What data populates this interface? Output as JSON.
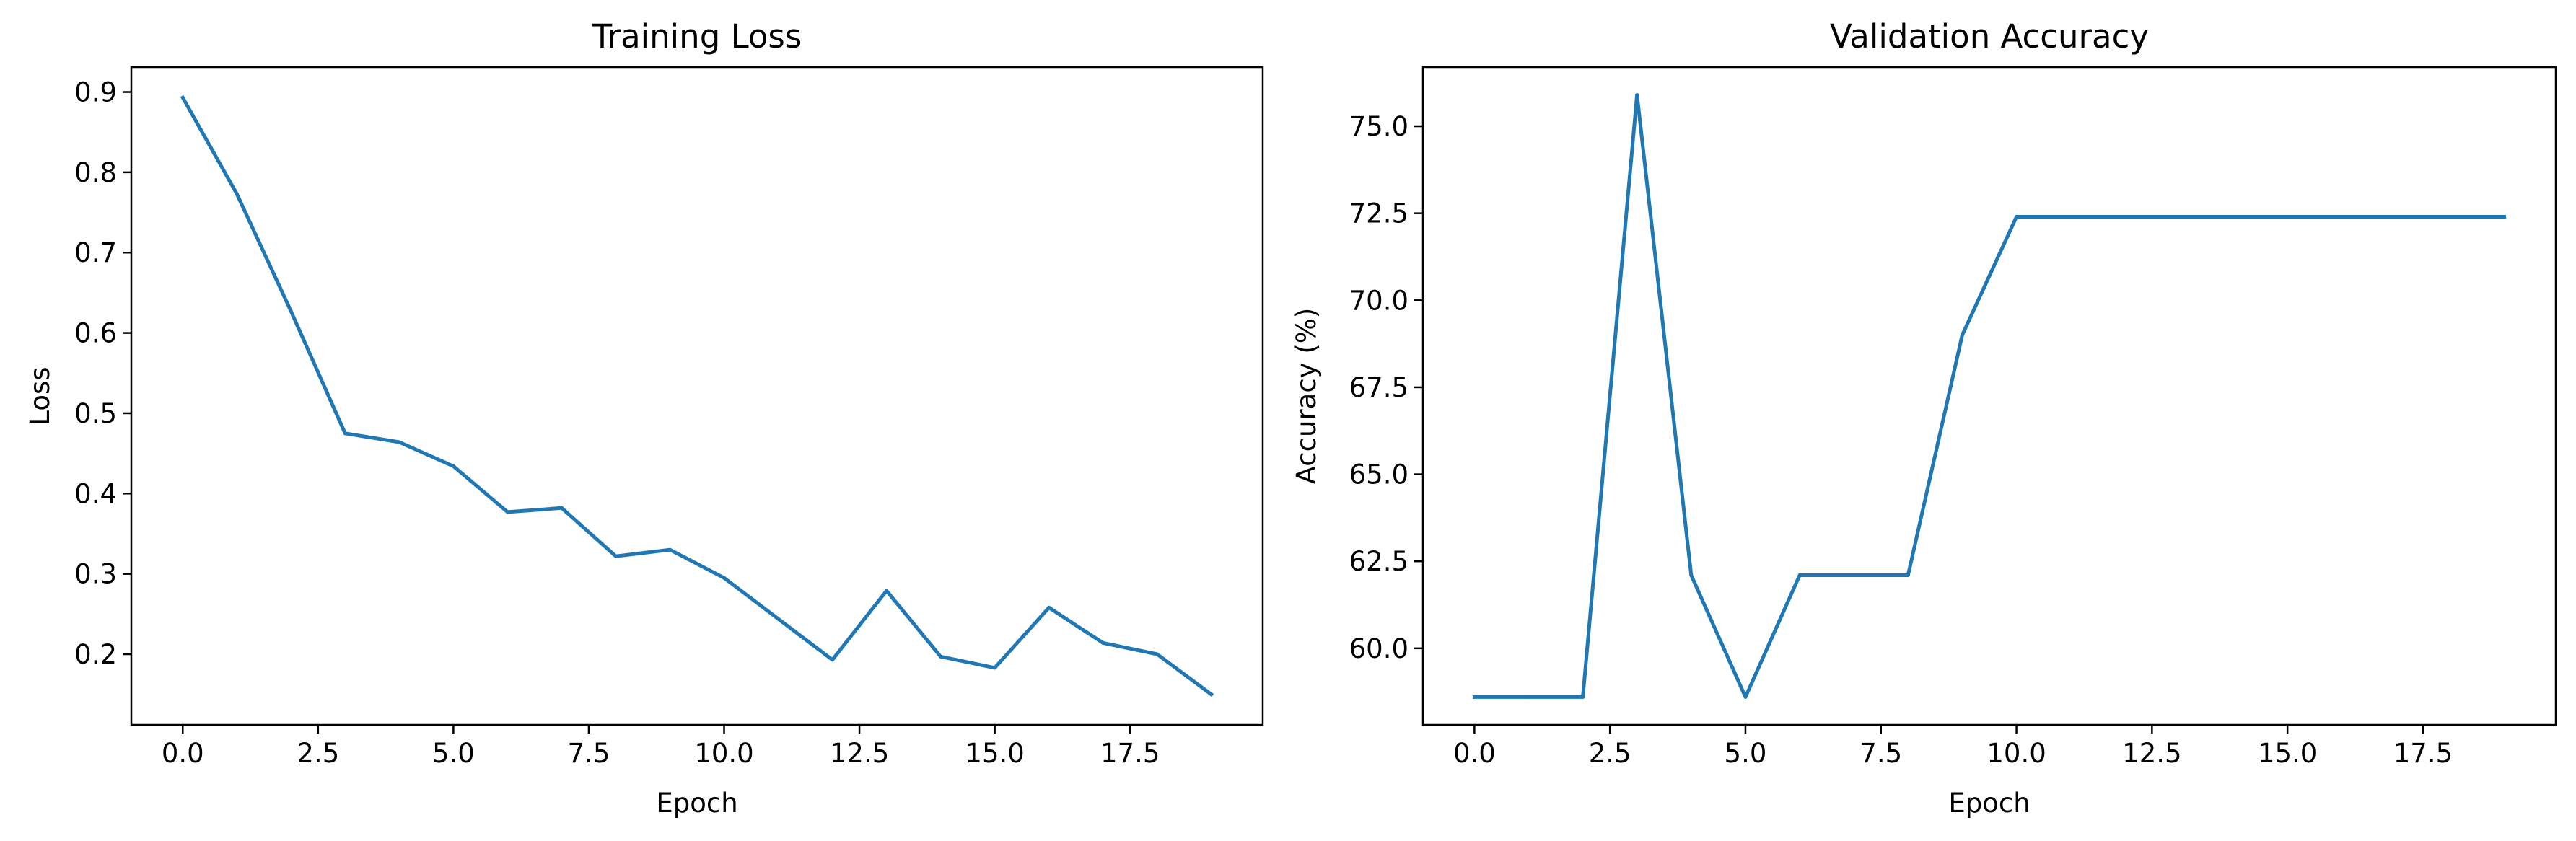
{
  "chart_data": [
    {
      "type": "line",
      "title": "Training Loss",
      "xlabel": "Epoch",
      "ylabel": "Loss",
      "xlim": [
        -0.95,
        19.95
      ],
      "ylim": [
        0.112,
        0.931
      ],
      "xticks": [
        0.0,
        2.5,
        5.0,
        7.5,
        10.0,
        12.5,
        15.0,
        17.5
      ],
      "xtick_labels": [
        "0.0",
        "2.5",
        "5.0",
        "7.5",
        "10.0",
        "12.5",
        "15.0",
        "17.5"
      ],
      "yticks": [
        0.2,
        0.3,
        0.4,
        0.5,
        0.6,
        0.7,
        0.8,
        0.9
      ],
      "ytick_labels": [
        "0.2",
        "0.3",
        "0.4",
        "0.5",
        "0.6",
        "0.7",
        "0.8",
        "0.9"
      ],
      "grid": false,
      "color": "#1f77b4",
      "x": [
        0,
        1,
        2,
        3,
        4,
        5,
        6,
        7,
        8,
        9,
        10,
        11,
        12,
        13,
        14,
        15,
        16,
        17,
        18,
        19
      ],
      "values": [
        0.893,
        0.773,
        0.627,
        0.475,
        0.464,
        0.434,
        0.377,
        0.382,
        0.322,
        0.33,
        0.295,
        0.244,
        0.193,
        0.279,
        0.197,
        0.183,
        0.258,
        0.214,
        0.2,
        0.15
      ]
    },
    {
      "type": "line",
      "title": "Validation Accuracy",
      "xlabel": "Epoch",
      "ylabel": "Accuracy (%)",
      "xlim": [
        -0.95,
        19.95
      ],
      "ylim": [
        57.8,
        76.7
      ],
      "xticks": [
        0.0,
        2.5,
        5.0,
        7.5,
        10.0,
        12.5,
        15.0,
        17.5
      ],
      "xtick_labels": [
        "0.0",
        "2.5",
        "5.0",
        "7.5",
        "10.0",
        "12.5",
        "15.0",
        "17.5"
      ],
      "yticks": [
        60.0,
        62.5,
        65.0,
        67.5,
        70.0,
        72.5,
        75.0
      ],
      "ytick_labels": [
        "60.0",
        "62.5",
        "65.0",
        "67.5",
        "70.0",
        "72.5",
        "75.0"
      ],
      "grid": false,
      "color": "#1f77b4",
      "x": [
        0,
        1,
        2,
        3,
        4,
        5,
        6,
        7,
        8,
        9,
        10,
        11,
        12,
        13,
        14,
        15,
        16,
        17,
        18,
        19
      ],
      "values": [
        58.6,
        58.6,
        58.6,
        75.9,
        62.1,
        58.6,
        62.1,
        62.1,
        62.1,
        69.0,
        72.4,
        72.4,
        72.4,
        72.4,
        72.4,
        72.4,
        72.4,
        72.4,
        72.4,
        72.4
      ]
    }
  ]
}
